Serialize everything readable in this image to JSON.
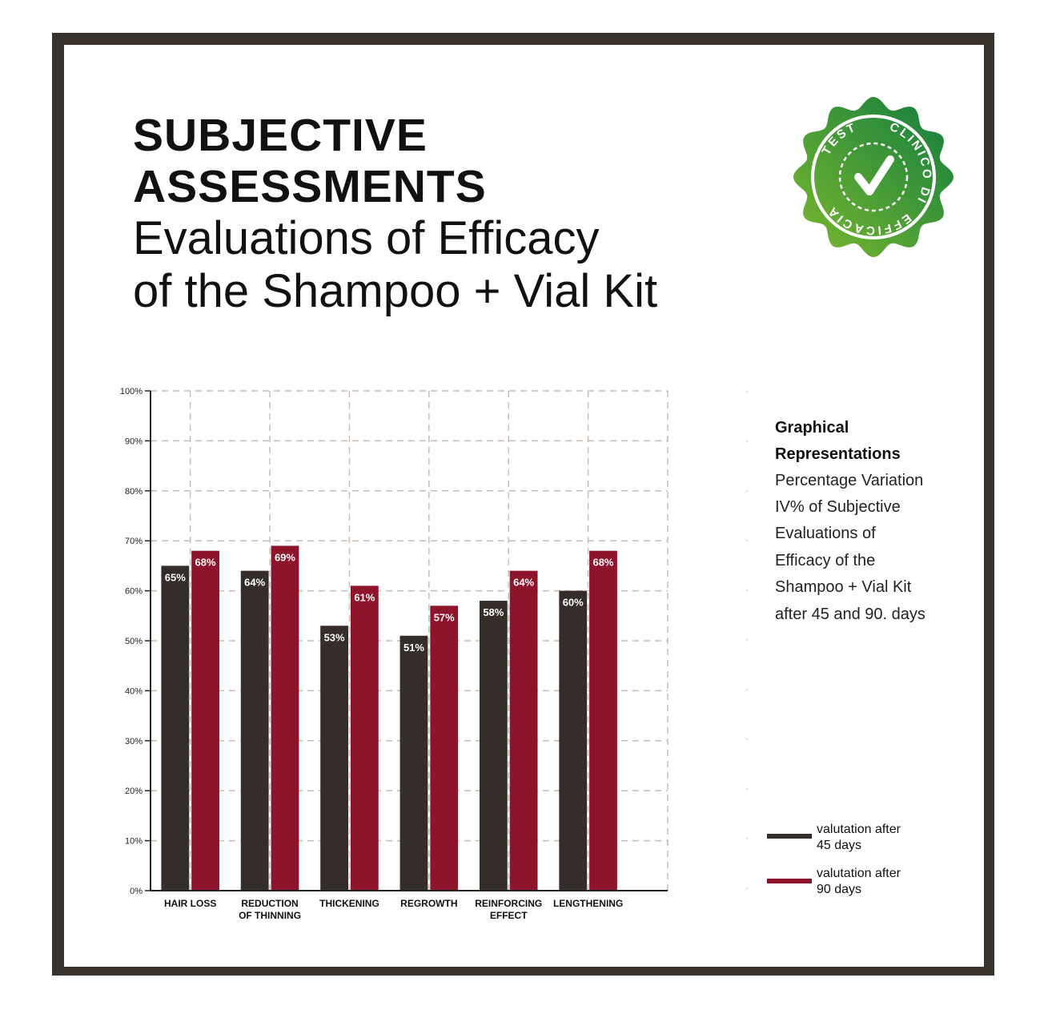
{
  "heading": {
    "bold_line1": "SUBJECTIVE",
    "bold_line2": "ASSESSMENTS",
    "light_line1": "Evaluations of Efficacy",
    "light_line2": "of the Shampoo + Vial Kit"
  },
  "seal": {
    "text_top": "CLINICO",
    "text_left": "TEST",
    "text_right": "DI",
    "text_right2": "EFFICACIA",
    "icon": "checkmark-icon",
    "color_light": "#7dba2e",
    "color_dark": "#0f7b3f"
  },
  "side_note": {
    "head_line1": "Graphical",
    "head_line2": "Representations",
    "lines": [
      "Percentage Variation",
      "IV% of Subjective",
      "Evaluations of",
      "Efficacy of the",
      "Shampoo + Vial Kit",
      "after 45 and 90. days"
    ]
  },
  "legend": [
    {
      "line1": "valutation after",
      "line2": "45 days",
      "color": "#352d29"
    },
    {
      "line1": "valutation after",
      "line2": "90 days",
      "color": "#8e142b"
    }
  ],
  "chart_data": {
    "type": "bar",
    "categories": [
      [
        "HAIR LOSS"
      ],
      [
        "REDUCTION",
        "OF THINNING"
      ],
      [
        "THICKENING"
      ],
      [
        "REGROWTH"
      ],
      [
        "REINFORCING",
        "EFFECT"
      ],
      [
        "LENGTHENING"
      ]
    ],
    "series": [
      {
        "name": "valutation after 45 days",
        "color": "#352d29",
        "values": [
          65,
          64,
          53,
          51,
          58,
          60
        ],
        "labels": [
          "65%",
          "64%",
          "53%",
          "51%",
          "58%",
          "60%"
        ]
      },
      {
        "name": "valutation after 90 days",
        "color": "#8e142b",
        "values": [
          68,
          69,
          61,
          57,
          64,
          68
        ],
        "labels": [
          "68%",
          "69%",
          "61%",
          "57%",
          "64%",
          "68%"
        ]
      }
    ],
    "yticks": [
      "0%",
      "10%",
      "20%",
      "30%",
      "40%",
      "50%",
      "60%",
      "70%",
      "80%",
      "90%",
      "100%"
    ],
    "ylim": [
      0,
      100
    ],
    "grid": true,
    "legend_position": "right"
  }
}
